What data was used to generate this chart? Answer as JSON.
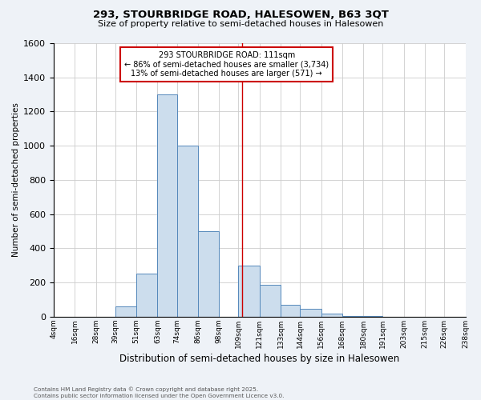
{
  "title": "293, STOURBRIDGE ROAD, HALESOWEN, B63 3QT",
  "subtitle": "Size of property relative to semi-detached houses in Halesowen",
  "xlabel": "Distribution of semi-detached houses by size in Halesowen",
  "ylabel": "Number of semi-detached properties",
  "footer": "Contains HM Land Registry data © Crown copyright and database right 2025.\nContains public sector information licensed under the Open Government Licence v3.0.",
  "bins": [
    4,
    16,
    28,
    39,
    51,
    63,
    74,
    86,
    98,
    109,
    121,
    133,
    144,
    156,
    168,
    180,
    191,
    203,
    215,
    226,
    238
  ],
  "bin_labels": [
    "4sqm",
    "16sqm",
    "28sqm",
    "39sqm",
    "51sqm",
    "63sqm",
    "74sqm",
    "86sqm",
    "98sqm",
    "109sqm",
    "121sqm",
    "133sqm",
    "144sqm",
    "156sqm",
    "168sqm",
    "180sqm",
    "191sqm",
    "203sqm",
    "215sqm",
    "226sqm",
    "238sqm"
  ],
  "values": [
    0,
    0,
    0,
    60,
    250,
    1300,
    1000,
    500,
    0,
    300,
    185,
    70,
    45,
    20,
    5,
    2,
    1,
    0,
    0,
    0
  ],
  "bar_color": "#ccdded",
  "bar_edgecolor": "#5588bb",
  "property_line_x": 111,
  "annotation_text": "293 STOURBRIDGE ROAD: 111sqm\n← 86% of semi-detached houses are smaller (3,734)\n13% of semi-detached houses are larger (571) →",
  "annotation_box_color": "#ffffff",
  "annotation_box_edgecolor": "#cc0000",
  "vline_color": "#cc0000",
  "ylim": [
    0,
    1600
  ],
  "yticks": [
    0,
    200,
    400,
    600,
    800,
    1000,
    1200,
    1400,
    1600
  ],
  "bg_color": "#eef2f7",
  "plot_bg_color": "#ffffff",
  "grid_color": "#cccccc"
}
